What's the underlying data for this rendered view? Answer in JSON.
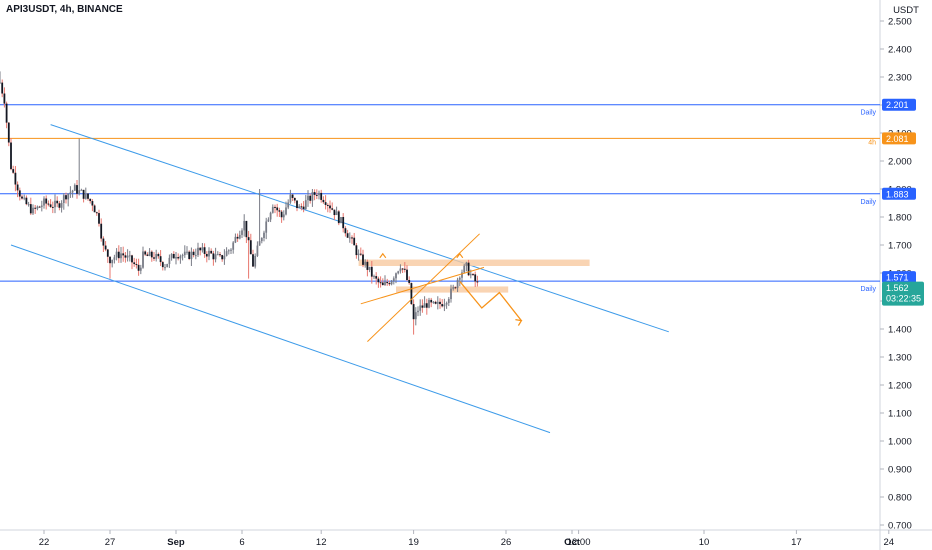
{
  "header": {
    "title": "API3USDT, 4h, BINANCE"
  },
  "chart_data": {
    "type": "candlestick",
    "symbol": "API3USDT",
    "interval": "4h",
    "exchange": "BINANCE",
    "currency_label": "USDT",
    "ylim": [
      0.68,
      2.56
    ],
    "y_ticks": [
      "2.500",
      "2.400",
      "2.300",
      "2.200",
      "2.100",
      "2.000",
      "1.900",
      "1.800",
      "1.700",
      "1.600",
      "1.500",
      "1.400",
      "1.300",
      "1.200",
      "1.100",
      "1.000",
      "0.900",
      "0.800",
      "0.700"
    ],
    "x_ticks": [
      {
        "label": "22",
        "t": 0
      },
      {
        "label": "27",
        "t": 30
      },
      {
        "label": "Sep",
        "t": 60
      },
      {
        "label": "6",
        "t": 90
      },
      {
        "label": "12",
        "t": 126
      },
      {
        "label": "19",
        "t": 168
      },
      {
        "label": "26",
        "t": 210
      },
      {
        "label": "Oct",
        "t": 240
      },
      {
        "label": "12:00",
        "t": 243
      },
      {
        "label": "10",
        "t": 300
      },
      {
        "label": "17",
        "t": 342
      },
      {
        "label": "24",
        "t": 384
      }
    ],
    "levels": [
      {
        "name": "Daily",
        "price": 2.201,
        "label": "2.201",
        "tf": "Daily",
        "color": "#2962ff"
      },
      {
        "name": "4h",
        "price": 2.081,
        "label": "2.081",
        "tf": "4h",
        "color": "#f7931a"
      },
      {
        "name": "Daily",
        "price": 1.883,
        "label": "1.883",
        "tf": "Daily",
        "color": "#2962ff"
      },
      {
        "name": "Daily",
        "price": 1.571,
        "label": "1.571",
        "tf": "Daily",
        "color": "#2962ff"
      }
    ],
    "last_price": {
      "value": 1.562,
      "label": "1.562",
      "countdown": "03:22:35"
    },
    "channel_lines": [
      {
        "from": [
          3,
          2.13
        ],
        "to": [
          284,
          1.39
        ]
      },
      {
        "from": [
          -15,
          1.7
        ],
        "to": [
          230,
          1.03
        ]
      }
    ],
    "rising_wedge": [
      {
        "from": [
          147,
          1.355
        ],
        "to": [
          198,
          1.74
        ]
      },
      {
        "from": [
          144,
          1.49
        ],
        "to": [
          200,
          1.62
        ]
      }
    ],
    "resistance_zones": [
      {
        "t0": 143,
        "t1": 248,
        "p0": 1.625,
        "p1": 1.648
      },
      {
        "t0": 160,
        "t1": 211,
        "p0": 1.53,
        "p1": 1.552
      }
    ],
    "projection_path": [
      [
        189,
        1.57
      ],
      [
        199,
        1.475
      ],
      [
        207,
        1.53
      ],
      [
        217,
        1.43
      ]
    ],
    "candles": []
  }
}
